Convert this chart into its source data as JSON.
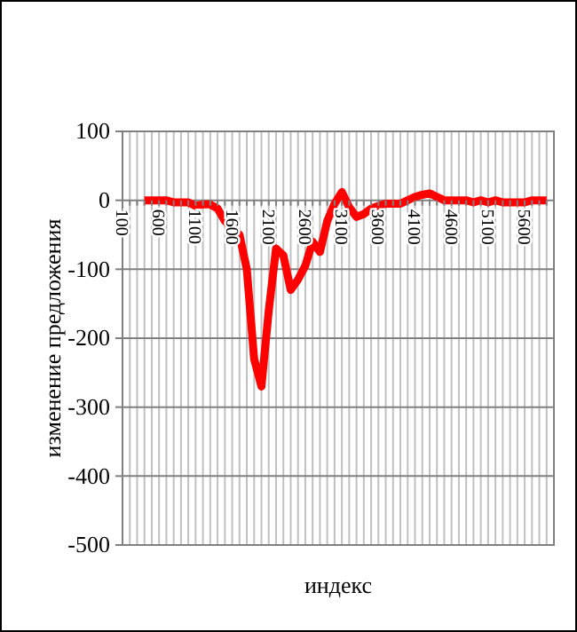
{
  "chart_data": {
    "type": "line",
    "xlabel": "индекс",
    "ylabel": "изменение предложения",
    "x": [
      400,
      500,
      600,
      700,
      800,
      900,
      1000,
      1100,
      1200,
      1300,
      1400,
      1500,
      1600,
      1700,
      1800,
      1900,
      2000,
      2100,
      2200,
      2300,
      2400,
      2500,
      2600,
      2700,
      2800,
      2900,
      3000,
      3100,
      3200,
      3300,
      3400,
      3500,
      3600,
      3700,
      3800,
      3900,
      4000,
      4100,
      4200,
      4300,
      4400,
      4500,
      4600,
      4700,
      4800,
      4900,
      5000,
      5100,
      5200,
      5300,
      5400,
      5500,
      5600,
      5700,
      5800,
      5900
    ],
    "series": [
      {
        "color": "#ff0000",
        "values": [
          0,
          0,
          0,
          0,
          -3,
          -3,
          -3,
          -8,
          -6,
          -6,
          -12,
          -30,
          -40,
          -50,
          -100,
          -230,
          -270,
          -160,
          -70,
          -80,
          -130,
          -115,
          -95,
          -60,
          -75,
          -30,
          -5,
          12,
          -10,
          -24,
          -20,
          -12,
          -8,
          -5,
          -5,
          -5,
          0,
          5,
          8,
          10,
          5,
          0,
          0,
          0,
          0,
          -3,
          0,
          -3,
          0,
          -3,
          -3,
          -3,
          -3,
          0,
          0,
          0
        ]
      }
    ],
    "xlim": [
      100,
      6000
    ],
    "xticks": [
      100,
      {
        "value": 200,
        "label": null
      },
      {
        "value": 300,
        "label": null
      },
      {
        "value": 400,
        "label": null
      },
      {
        "value": 500,
        "label": null
      },
      600,
      {
        "value": 700,
        "label": null
      },
      {
        "value": 800,
        "label": null
      },
      {
        "value": 900,
        "label": null
      },
      {
        "value": 1000,
        "label": null
      },
      1100,
      {
        "value": 1200,
        "label": null
      },
      {
        "value": 1300,
        "label": null
      },
      {
        "value": 1400,
        "label": null
      },
      {
        "value": 1500,
        "label": null
      },
      1600,
      {
        "value": 1700,
        "label": null
      },
      {
        "value": 1800,
        "label": null
      },
      {
        "value": 1900,
        "label": null
      },
      {
        "value": 2000,
        "label": null
      },
      2100,
      {
        "value": 2200,
        "label": null
      },
      {
        "value": 2300,
        "label": null
      },
      {
        "value": 2400,
        "label": null
      },
      {
        "value": 2500,
        "label": null
      },
      2600,
      {
        "value": 2700,
        "label": null
      },
      {
        "value": 2800,
        "label": null
      },
      {
        "value": 2900,
        "label": null
      },
      {
        "value": 3000,
        "label": null
      },
      3100,
      {
        "value": 3200,
        "label": null
      },
      {
        "value": 3300,
        "label": null
      },
      {
        "value": 3400,
        "label": null
      },
      {
        "value": 3500,
        "label": null
      },
      3600,
      {
        "value": 3700,
        "label": null
      },
      {
        "value": 3800,
        "label": null
      },
      {
        "value": 3900,
        "label": null
      },
      {
        "value": 4000,
        "label": null
      },
      4100,
      {
        "value": 4200,
        "label": null
      },
      {
        "value": 4300,
        "label": null
      },
      {
        "value": 4400,
        "label": null
      },
      {
        "value": 4500,
        "label": null
      },
      4600,
      {
        "value": 4700,
        "label": null
      },
      {
        "value": 4800,
        "label": null
      },
      {
        "value": 4900,
        "label": null
      },
      {
        "value": 5000,
        "label": null
      },
      5100,
      {
        "value": 5200,
        "label": null
      },
      {
        "value": 5300,
        "label": null
      },
      {
        "value": 5400,
        "label": null
      },
      {
        "value": 5500,
        "label": null
      },
      5600,
      {
        "value": 5700,
        "label": null
      },
      {
        "value": 5800,
        "label": null
      },
      {
        "value": 5900,
        "label": null
      },
      {
        "value": 6000,
        "label": null
      }
    ],
    "ylim": [
      -500,
      100
    ],
    "yticks": [
      -500,
      -400,
      -300,
      -200,
      -100,
      0,
      100
    ],
    "grid": true,
    "marker": "none",
    "line_style": "solid"
  }
}
